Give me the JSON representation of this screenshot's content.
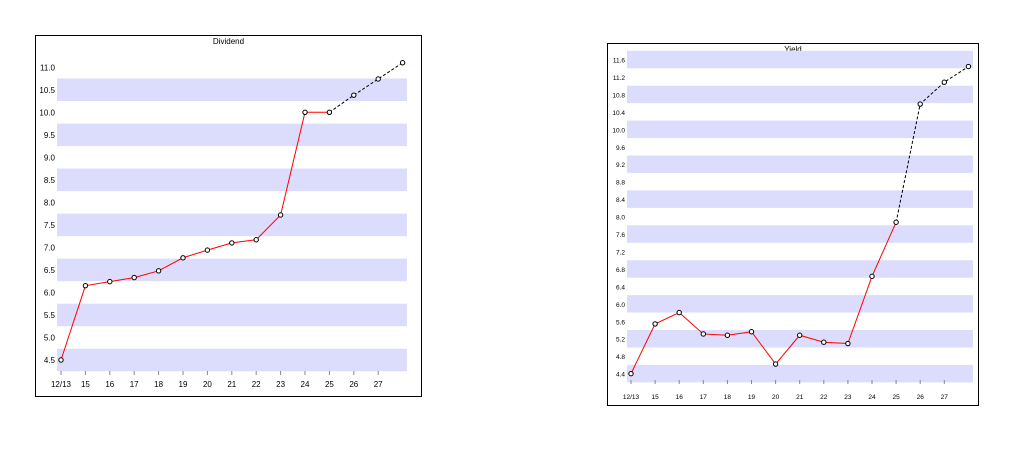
{
  "chart_data": [
    {
      "type": "line",
      "title": "Dividend",
      "xlabel": "",
      "ylabel": "",
      "categories": [
        "12/13",
        "15",
        "16",
        "17",
        "18",
        "19",
        "20",
        "21",
        "22",
        "23",
        "24",
        "25",
        "26",
        "27"
      ],
      "yticks": [
        "4.5",
        "5.0",
        "5.5",
        "6.0",
        "6.5",
        "7.0",
        "7.5",
        "8.0",
        "8.5",
        "9.0",
        "9.5",
        "10.0",
        "10.5",
        "11.0"
      ],
      "ylim": [
        4.3,
        11.45
      ],
      "series": [
        {
          "values": [
            4.5,
            6.15,
            6.24,
            6.33,
            6.48,
            6.77,
            6.94,
            7.1,
            7.17,
            7.72,
            10.0,
            10.0,
            10.38,
            10.74,
            11.1
          ],
          "x": [
            0,
            1,
            2,
            3,
            4,
            5,
            6,
            7,
            8,
            9,
            10,
            11,
            12,
            13,
            14
          ],
          "line_color": "#ff0000",
          "forecast_color": "#000000",
          "forecast_from_index": 11
        }
      ],
      "grid": "horizontal alternating bands",
      "band_color": "#dcdcfc",
      "legend": "none"
    },
    {
      "type": "line",
      "title": "Yield",
      "xlabel": "",
      "ylabel": "",
      "categories": [
        "12/13",
        "15",
        "16",
        "17",
        "18",
        "19",
        "20",
        "21",
        "22",
        "23",
        "24",
        "25",
        "26",
        "27"
      ],
      "yticks": [
        "4.4",
        "4.8",
        "5.2",
        "5.6",
        "6.0",
        "6.4",
        "6.8",
        "7.2",
        "7.6",
        "8.0",
        "8.4",
        "8.8",
        "9.2",
        "9.6",
        "10.0",
        "10.4",
        "10.8",
        "11.2",
        "11.6"
      ],
      "ylim": [
        4.3,
        11.75
      ],
      "series": [
        {
          "values": [
            4.4,
            5.54,
            5.8,
            5.31,
            5.28,
            5.36,
            4.62,
            5.28,
            5.12,
            5.09,
            6.63,
            7.87,
            10.58,
            11.08,
            11.44
          ],
          "x": [
            0,
            1,
            2,
            3,
            4,
            5,
            6,
            7,
            8,
            9,
            10,
            11,
            12,
            13,
            14
          ],
          "line_color": "#ff0000",
          "forecast_color": "#000000",
          "forecast_from_index": 11
        }
      ],
      "grid": "horizontal alternating bands",
      "band_color": "#dcdcfc",
      "legend": "none"
    }
  ]
}
